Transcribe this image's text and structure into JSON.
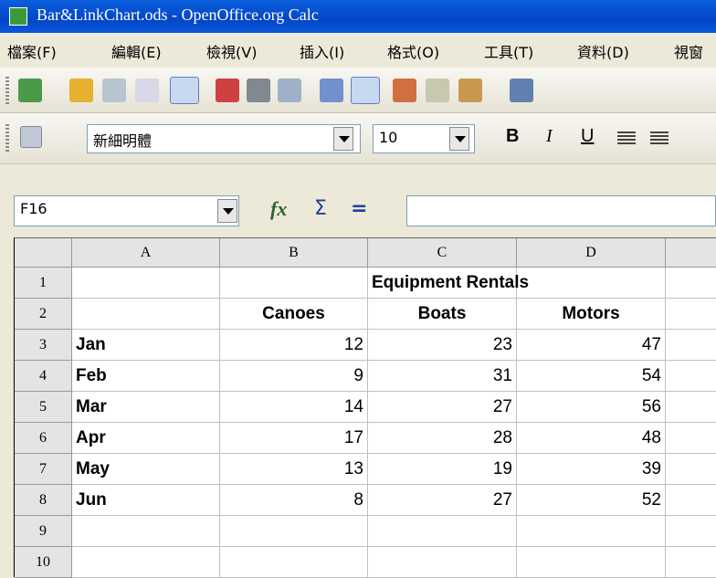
{
  "window": {
    "title": "Bar&LinkChart.ods - OpenOffice.org Calc"
  },
  "menu": [
    "檔案(F)",
    "編輯(E)",
    "檢視(V)",
    "插入(I)",
    "格式(O)",
    "工具(T)",
    "資料(D)",
    "視窗"
  ],
  "toolbar": {
    "font": "新細明體",
    "size": "10",
    "format_buttons": [
      "B",
      "I",
      "U"
    ]
  },
  "formula_bar": {
    "name_box": "F16",
    "icons": [
      "fx",
      "Σ",
      "="
    ]
  },
  "sheet": {
    "columns": [
      "A",
      "B",
      "C",
      "D"
    ],
    "row_numbers": [
      1,
      2,
      3,
      4,
      5,
      6,
      7,
      8,
      9,
      10
    ],
    "title": "Equipment Rentals",
    "headers": [
      "Canoes",
      "Boats",
      "Motors"
    ],
    "rows": [
      [
        "Jan",
        12,
        23,
        47
      ],
      [
        "Feb",
        9,
        31,
        54
      ],
      [
        "Mar",
        14,
        27,
        56
      ],
      [
        "Apr",
        17,
        28,
        48
      ],
      [
        "May",
        13,
        19,
        39
      ],
      [
        "Jun",
        8,
        27,
        52
      ]
    ]
  }
}
